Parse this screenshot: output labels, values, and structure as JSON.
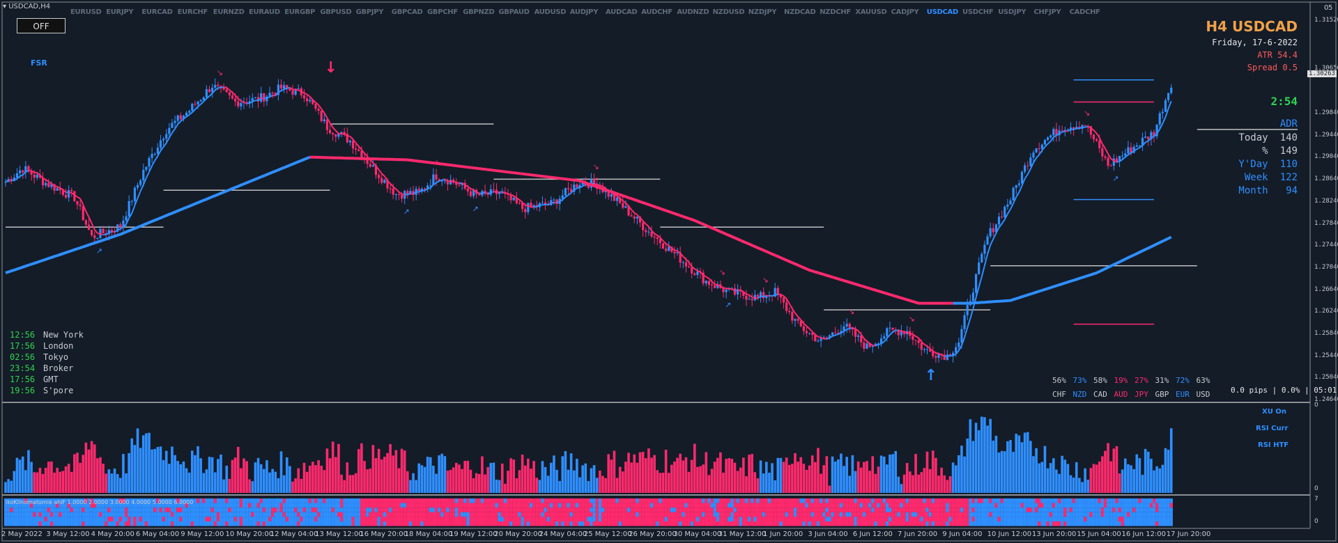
{
  "window": {
    "title": "USDCAD,H4",
    "off_button": "OFF",
    "top_right": "05"
  },
  "pairs": [
    {
      "label": "EURUSD",
      "active": false
    },
    {
      "label": "EURJPY",
      "active": false
    },
    {
      "label": "EURCAD",
      "active": false
    },
    {
      "label": "EURCHF",
      "active": false
    },
    {
      "label": "EURNZD",
      "active": false
    },
    {
      "label": "EURAUD",
      "active": false
    },
    {
      "label": "EURGBP",
      "active": false
    },
    {
      "label": "GBPUSD",
      "active": false
    },
    {
      "label": "GBPJPY",
      "active": false
    },
    {
      "label": "GBPCAD",
      "active": false
    },
    {
      "label": "GBPCHF",
      "active": false
    },
    {
      "label": "GBPNZD",
      "active": false
    },
    {
      "label": "GBPAUD",
      "active": false
    },
    {
      "label": "AUDUSD",
      "active": false
    },
    {
      "label": "AUDJPY",
      "active": false
    },
    {
      "label": "AUDCAD",
      "active": false
    },
    {
      "label": "AUDCHF",
      "active": false
    },
    {
      "label": "AUDNZD",
      "active": false
    },
    {
      "label": "NZDUSD",
      "active": false
    },
    {
      "label": "NZDJPY",
      "active": false
    },
    {
      "label": "NZDCAD",
      "active": false
    },
    {
      "label": "NZDCHF",
      "active": false
    },
    {
      "label": "XAUUSD",
      "active": false
    },
    {
      "label": "CADJPY",
      "active": false
    },
    {
      "label": "USDCAD",
      "active": true
    },
    {
      "label": "USDCHF",
      "active": false
    },
    {
      "label": "USDJPY",
      "active": false
    },
    {
      "label": "CHFJPY",
      "active": false
    },
    {
      "label": "CADCHF",
      "active": false
    }
  ],
  "fsr_label": "FSR",
  "info": {
    "symbol": "H4  USDCAD",
    "date": "Friday, 17-6-2022",
    "atr": "ATR 54.4",
    "spread": "Spread 0.5",
    "countdown": "2:54",
    "adr_title": "ADR",
    "adr_rows": [
      {
        "label": "Today",
        "value": "140",
        "color": "#c8ccd2"
      },
      {
        "label": "%",
        "value": "149",
        "color": "#c8ccd2"
      },
      {
        "label": "Y'Day",
        "value": "110",
        "color": "#2f8fff"
      },
      {
        "label": "Week",
        "value": "122",
        "color": "#2f8fff"
      },
      {
        "label": "Month",
        "value": "94",
        "color": "#2f8fff"
      }
    ]
  },
  "sessions": [
    {
      "time": "12:56",
      "name": "New York"
    },
    {
      "time": "17:56",
      "name": "London"
    },
    {
      "time": "02:56",
      "name": "Tokyo"
    },
    {
      "time": "23:54",
      "name": "Broker"
    },
    {
      "time": "17:56",
      "name": "GMT"
    },
    {
      "time": "19:56",
      "name": "S'pore"
    }
  ],
  "strength": [
    {
      "pct": "56%",
      "cur": "CHF",
      "color": "#c8ccd2"
    },
    {
      "pct": "73%",
      "cur": "NZD",
      "color": "#2f8fff"
    },
    {
      "pct": "58%",
      "cur": "CAD",
      "color": "#c8ccd2"
    },
    {
      "pct": "19%",
      "cur": "AUD",
      "color": "#ff2a6d"
    },
    {
      "pct": "27%",
      "cur": "JPY",
      "color": "#ff2a6d"
    },
    {
      "pct": "31%",
      "cur": "GBP",
      "color": "#c8ccd2"
    },
    {
      "pct": "72%",
      "cur": "EUR",
      "color": "#2f8fff"
    },
    {
      "pct": "63%",
      "cur": "USD",
      "color": "#c8ccd2"
    }
  ],
  "pips_info": "0.0 pips | 0.0% | 05:01",
  "current_price": "1.30263",
  "price_ticks": [
    "1.31520",
    "1.30650",
    "1.29840",
    "1.29440",
    "1.29040",
    "1.28640",
    "1.28240",
    "1.27840",
    "1.27440",
    "1.27040",
    "1.26640",
    "1.26240",
    "1.25840",
    "1.25440",
    "1.25040",
    "1.24640"
  ],
  "indicator_labels": {
    "panel1": [
      "XU On",
      "RSI Curr",
      "RSI HTF"
    ],
    "panel1_max": "0",
    "panel1_min": "0",
    "panel2_text": "ikoKlinomatomie ahiF 1.0000 2.0000 3.0000 4.0000 5.0000 6.0000",
    "panel2_max": "7",
    "panel2_min": "0"
  },
  "time_ticks": [
    "2 May 2022",
    "3 May 12:00",
    "4 May 20:00",
    "6 May 04:00",
    "9 May 12:00",
    "10 May 20:00",
    "12 May 04:00",
    "13 May 12:00",
    "16 May 20:00",
    "18 May 04:00",
    "19 May 12:00",
    "20 May 20:00",
    "24 May 04:00",
    "25 May 12:00",
    "26 May 20:00",
    "30 May 04:00",
    "31 May 12:00",
    "1 Jun 20:00",
    "3 Jun 04:00",
    "6 Jun 12:00",
    "7 Jun 20:00",
    "9 Jun 04:00",
    "10 Jun 12:00",
    "13 Jun 20:00",
    "15 Jun 04:00",
    "16 Jun 12:00",
    "17 Jun 20:00"
  ],
  "colors": {
    "bg": "#141c28",
    "bull": "#2f8fff",
    "bear": "#ff2a6d",
    "grid": "#c0c0c0",
    "panel_border": "#8a8f96"
  },
  "chart_data": {
    "type": "candlestick",
    "timeframe": "H4",
    "symbol": "USDCAD",
    "close_anchors": [
      [
        0,
        1.286
      ],
      [
        6,
        1.2885
      ],
      [
        14,
        1.2858
      ],
      [
        24,
        1.2832
      ],
      [
        30,
        1.276
      ],
      [
        40,
        1.278
      ],
      [
        48,
        1.288
      ],
      [
        56,
        1.2955
      ],
      [
        64,
        1.299
      ],
      [
        72,
        1.3035
      ],
      [
        80,
        1.3005
      ],
      [
        88,
        1.301
      ],
      [
        96,
        1.303
      ],
      [
        104,
        1.302
      ],
      [
        112,
        1.296
      ],
      [
        120,
        1.2935
      ],
      [
        128,
        1.2885
      ],
      [
        136,
        1.2838
      ],
      [
        144,
        1.284
      ],
      [
        150,
        1.2872
      ],
      [
        156,
        1.286
      ],
      [
        164,
        1.2835
      ],
      [
        172,
        1.284
      ],
      [
        180,
        1.2812
      ],
      [
        190,
        1.282
      ],
      [
        200,
        1.286
      ],
      [
        206,
        1.2856
      ],
      [
        214,
        1.282
      ],
      [
        224,
        1.277
      ],
      [
        234,
        1.2725
      ],
      [
        244,
        1.268
      ],
      [
        252,
        1.266
      ],
      [
        262,
        1.265
      ],
      [
        268,
        1.266
      ],
      [
        276,
        1.26
      ],
      [
        284,
        1.257
      ],
      [
        292,
        1.26
      ],
      [
        300,
        1.256
      ],
      [
        308,
        1.259
      ],
      [
        314,
        1.259
      ],
      [
        320,
        1.2555
      ],
      [
        328,
        1.2545
      ],
      [
        332,
        1.257
      ],
      [
        336,
        1.265
      ],
      [
        342,
        1.276
      ],
      [
        350,
        1.283
      ],
      [
        358,
        1.292
      ],
      [
        368,
        1.296
      ],
      [
        376,
        1.2965
      ],
      [
        384,
        1.289
      ],
      [
        392,
        1.292
      ],
      [
        400,
        1.295
      ],
      [
        406,
        1.304
      ]
    ],
    "ma_slow_anchors": [
      [
        0,
        1.2695
      ],
      [
        40,
        1.2765
      ],
      [
        80,
        1.285
      ],
      [
        106,
        1.2905
      ],
      [
        140,
        1.29
      ],
      [
        200,
        1.2862
      ],
      [
        240,
        1.279
      ],
      [
        280,
        1.27
      ],
      [
        318,
        1.264
      ],
      [
        336,
        1.264
      ],
      [
        350,
        1.2645
      ],
      [
        380,
        1.2695
      ],
      [
        406,
        1.276
      ]
    ],
    "ma_slow_color_switch_index": 330,
    "levels": [
      {
        "y": 1.2778,
        "from": 0,
        "to": 55
      },
      {
        "y": 1.2845,
        "from": 55,
        "to": 113
      },
      {
        "y": 1.2965,
        "from": 113,
        "to": 170
      },
      {
        "y": 1.2865,
        "from": 170,
        "to": 228
      },
      {
        "y": 1.2778,
        "from": 228,
        "to": 285
      },
      {
        "y": 1.2628,
        "from": 285,
        "to": 343
      },
      {
        "y": 1.2708,
        "from": 343,
        "to": 415
      },
      {
        "y": 1.2955,
        "from": 415,
        "to": 450
      }
    ],
    "ranges": [
      {
        "y": 1.3045,
        "color": "#2f8fff"
      },
      {
        "y": 1.3005,
        "color": "#ff2a6d"
      },
      {
        "y": 1.2828,
        "color": "#2f8fff"
      },
      {
        "y": 1.2602,
        "color": "#ff2a6d"
      }
    ],
    "range_from_index": 372,
    "range_to_index": 400,
    "big_arrows": [
      {
        "index": 113,
        "dir": "down"
      },
      {
        "index": 322,
        "dir": "up"
      }
    ],
    "bar_count": 407,
    "price_min": 1.2464,
    "price_max": 1.3152
  }
}
